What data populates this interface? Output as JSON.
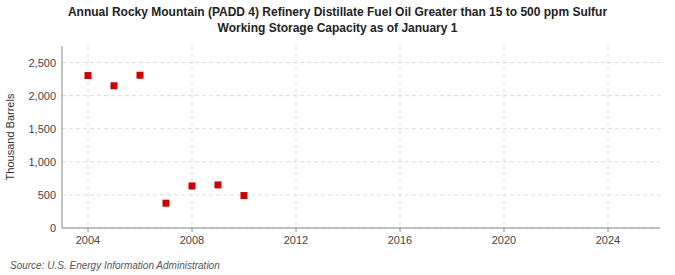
{
  "chart_data": {
    "type": "scatter",
    "title": "Annual Rocky Mountain (PADD 4) Refinery Distillate Fuel Oil Greater than 15 to 500 ppm Sulfur",
    "subtitle": "Working Storage Capacity as of January 1",
    "ylabel": "Thousand Barrels",
    "annotations": [
      "Source: U.S. Energy Information Administration"
    ],
    "x": [
      2004,
      2005,
      2006,
      2007,
      2008,
      2009,
      2010
    ],
    "values": [
      2303,
      2149,
      2308,
      375,
      635,
      651,
      490
    ],
    "color": "#cc0000",
    "marker": "square",
    "xlim": [
      2003,
      2026
    ],
    "ylim": [
      0,
      2750
    ],
    "xticks": [
      2004,
      2008,
      2012,
      2016,
      2020,
      2024
    ],
    "yticks": [
      0,
      500,
      {
        "value": 1000,
        "label": "1,000"
      },
      {
        "value": 1500,
        "label": "1,500"
      },
      {
        "value": 2000,
        "label": "2,000"
      },
      {
        "value": 2500,
        "label": "2,500"
      }
    ],
    "grid": true
  }
}
